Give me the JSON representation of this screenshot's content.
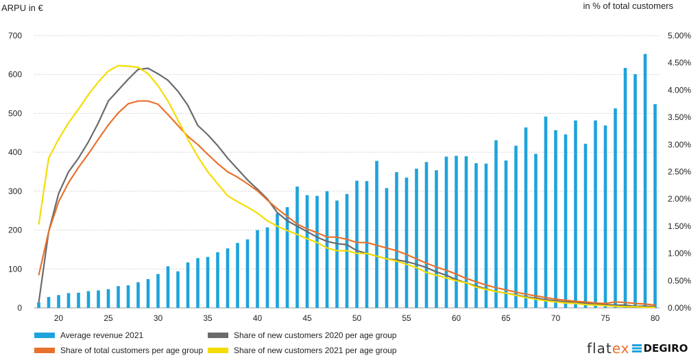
{
  "chart_data": {
    "type": "bar+line",
    "left_axis_title": "ARPU in €",
    "right_axis_title": "in % of total customers",
    "ylim_left": [
      0,
      700
    ],
    "left_ticks": [
      "0",
      "100",
      "200",
      "300",
      "400",
      "500",
      "600",
      "700"
    ],
    "ylim_right": [
      0,
      5
    ],
    "right_ticks": [
      "0.00%",
      "0.50%",
      "1.00%",
      "1.50%",
      "2.00%",
      "2.50%",
      "3.00%",
      "3.50%",
      "4.00%",
      "4.50%",
      "5.00%"
    ],
    "x_ticks": [
      "20",
      "25",
      "30",
      "35",
      "40",
      "45",
      "50",
      "55",
      "60",
      "65",
      "70",
      "75",
      "80"
    ],
    "x_start": 18,
    "x_end": 80,
    "grid": "horizontal dotted",
    "bars": {
      "name": "Average revenue 2021",
      "color": "#1ea3dc",
      "values": [
        14,
        28,
        33,
        38,
        39,
        43,
        45,
        48,
        56,
        58,
        66,
        74,
        87,
        107,
        94,
        117,
        128,
        131,
        143,
        153,
        167,
        176,
        200,
        207,
        243,
        259,
        312,
        290,
        288,
        300,
        276,
        293,
        327,
        326,
        378,
        308,
        349,
        335,
        358,
        375,
        354,
        389,
        391,
        390,
        372,
        371,
        431,
        379,
        417,
        464,
        396,
        492,
        457,
        446,
        482,
        422,
        482,
        469,
        513,
        617,
        601,
        653,
        524
      ]
    },
    "series": [
      {
        "name": "Share of new customers 2020 per age group",
        "color": "#6a6a6a",
        "values": [
          0.1,
          1.4,
          2.1,
          2.5,
          2.75,
          3.05,
          3.4,
          3.8,
          4.0,
          4.2,
          4.38,
          4.4,
          4.3,
          4.18,
          3.98,
          3.72,
          3.35,
          3.18,
          2.98,
          2.75,
          2.55,
          2.35,
          2.18,
          2.0,
          1.75,
          1.6,
          1.5,
          1.4,
          1.3,
          1.22,
          1.18,
          1.16,
          1.05,
          1.0,
          0.95,
          0.9,
          0.88,
          0.85,
          0.8,
          0.74,
          0.66,
          0.6,
          0.52,
          0.46,
          0.4,
          0.35,
          0.3,
          0.27,
          0.24,
          0.2,
          0.18,
          0.15,
          0.13,
          0.11,
          0.1,
          0.09,
          0.07,
          0.06,
          0.05,
          0.05,
          0.03,
          0.03,
          0.02
        ]
      },
      {
        "name": "Share of total customers per age group",
        "color": "#e8712b",
        "values": [
          0.6,
          1.4,
          1.95,
          2.3,
          2.58,
          2.83,
          3.1,
          3.36,
          3.58,
          3.75,
          3.8,
          3.8,
          3.74,
          3.55,
          3.35,
          3.15,
          3.0,
          2.82,
          2.65,
          2.5,
          2.4,
          2.28,
          2.15,
          1.98,
          1.82,
          1.68,
          1.54,
          1.45,
          1.38,
          1.3,
          1.3,
          1.26,
          1.2,
          1.2,
          1.15,
          1.1,
          1.05,
          0.98,
          0.9,
          0.82,
          0.75,
          0.69,
          0.62,
          0.54,
          0.48,
          0.42,
          0.37,
          0.33,
          0.29,
          0.25,
          0.22,
          0.19,
          0.16,
          0.14,
          0.12,
          0.11,
          0.09,
          0.08,
          0.11,
          0.1,
          0.08,
          0.07,
          0.05
        ]
      },
      {
        "name": "Share of new customers 2021 per age group",
        "color": "#f5dc00",
        "values": [
          1.53,
          2.75,
          3.1,
          3.4,
          3.65,
          3.92,
          4.15,
          4.35,
          4.45,
          4.44,
          4.42,
          4.3,
          4.08,
          3.8,
          3.45,
          3.1,
          2.78,
          2.5,
          2.28,
          2.06,
          1.95,
          1.85,
          1.74,
          1.6,
          1.5,
          1.42,
          1.35,
          1.27,
          1.2,
          1.1,
          1.05,
          1.05,
          1.0,
          1.0,
          0.95,
          0.9,
          0.86,
          0.8,
          0.74,
          0.65,
          0.6,
          0.55,
          0.5,
          0.46,
          0.38,
          0.34,
          0.3,
          0.27,
          0.23,
          0.19,
          0.16,
          0.13,
          0.11,
          0.09,
          0.08,
          0.06,
          0.05,
          0.04,
          0.03,
          0.02,
          0.02,
          0.01,
          0.01
        ]
      }
    ]
  },
  "legend": {
    "bars": "Average revenue 2021",
    "gray": "Share of new customers 2020 per age group",
    "orange": "Share of total customers per age group",
    "yellow": "Share of new customers 2021 per age group"
  },
  "logo": {
    "flat": "flat",
    "ex": "ex",
    "degiro": "DEGIRO"
  }
}
